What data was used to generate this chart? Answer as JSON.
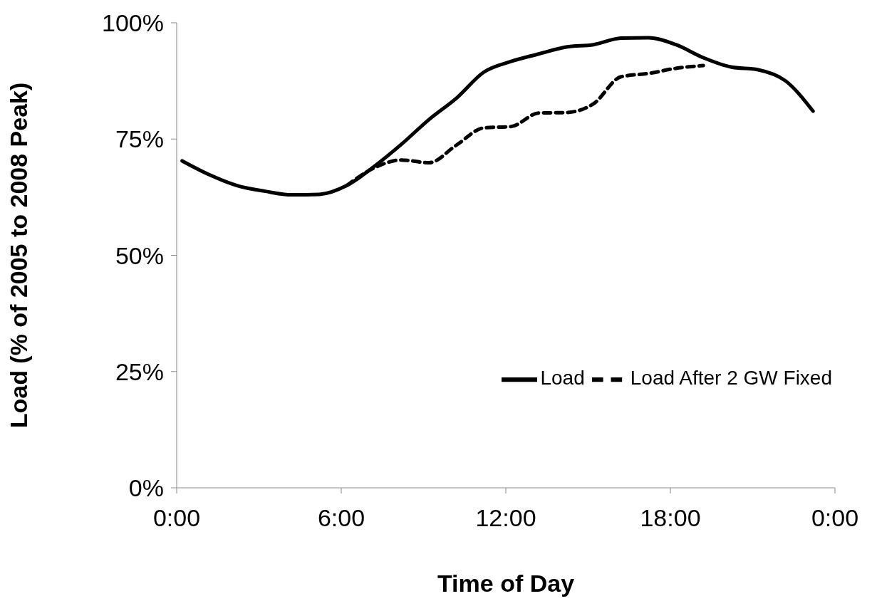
{
  "chart_data": {
    "type": "line",
    "xlabel": "Time of Day",
    "ylabel": "Load (% of 2005 to 2008 Peak)",
    "x": [
      0.2,
      1.2,
      2.2,
      3.2,
      4.2,
      5.2,
      6.2,
      7.2,
      8.2,
      9.2,
      10.2,
      11.2,
      12.2,
      13.2,
      14.2,
      15.2,
      16.2,
      17.2,
      18.2,
      19.2,
      20.2,
      21.2,
      22.2,
      23.2
    ],
    "series": [
      {
        "name": "Load",
        "color": "#000000",
        "line_style": "solid",
        "values": [
          70.3,
          67.3,
          65,
          63.8,
          63,
          63.1,
          65,
          69.1,
          73.9,
          79.2,
          83.8,
          89.4,
          91.7,
          93.3,
          94.8,
          95.3,
          96.7,
          96.8,
          95.3,
          92.5,
          90.5,
          89.9,
          87.5,
          81
        ]
      },
      {
        "name": "Load After 2 GW Fixed",
        "color": "#000000",
        "line_style": "dashed",
        "values": [
          null,
          null,
          null,
          null,
          null,
          null,
          65,
          68.8,
          70.5,
          69.9,
          73.7,
          77.4,
          77.7,
          80.6,
          80.7,
          82.6,
          88.4,
          89.1,
          90.2,
          90.8,
          null,
          null,
          null,
          null
        ]
      }
    ],
    "xlim": [
      0,
      24
    ],
    "xticks": [
      {
        "value": 0,
        "label": "0:00"
      },
      {
        "value": 6,
        "label": "6:00"
      },
      {
        "value": 12,
        "label": "12:00"
      },
      {
        "value": 18,
        "label": "18:00"
      },
      {
        "value": 24,
        "label": "0:00"
      }
    ],
    "ylim": [
      0,
      100
    ],
    "yticks": [
      {
        "value": 0,
        "label": "0%"
      },
      {
        "value": 25,
        "label": "25%"
      },
      {
        "value": 50,
        "label": "50%"
      },
      {
        "value": 75,
        "label": "75%"
      },
      {
        "value": 100,
        "label": "100%"
      }
    ],
    "grid": false,
    "legend": "bottom right",
    "marker": "none"
  }
}
